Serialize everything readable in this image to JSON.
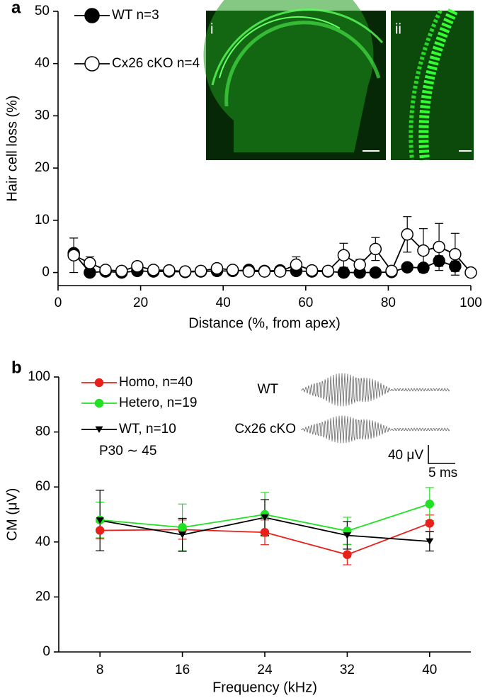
{
  "chart_data": [
    {
      "type": "line",
      "panel_label": "a",
      "x_label": "Distance (%, from apex)",
      "y_label": "Hair cell loss (%)",
      "image_labels": [
        "i",
        "ii"
      ],
      "xlim": [
        0,
        100
      ],
      "ylim": [
        -2.5,
        50
      ],
      "xticks": [
        0,
        20,
        40,
        60,
        80,
        100
      ],
      "yticks": [
        0,
        10,
        20,
        30,
        40,
        50
      ],
      "x": [
        3.8,
        7.7,
        11.5,
        15.4,
        19.2,
        23.1,
        26.9,
        30.8,
        34.6,
        38.5,
        42.3,
        46.2,
        50,
        53.8,
        57.7,
        61.5,
        65.4,
        69.2,
        73.1,
        76.9,
        80.8,
        84.6,
        88.5,
        92.3,
        96.2,
        100
      ],
      "series": [
        {
          "name": "WT n=3",
          "color": "#000000",
          "marker": "filled-circle",
          "values": [
            3.7,
            0,
            0.2,
            0,
            0.3,
            0.2,
            0.2,
            0.1,
            0.2,
            0.3,
            0.3,
            0.5,
            0.3,
            0.4,
            0.3,
            0.2,
            0.2,
            0,
            0,
            0,
            0.1,
            1.0,
            0.9,
            2.2,
            1.2,
            null
          ],
          "errors": [
            0.6,
            0.3,
            0.2,
            0.2,
            0.2,
            0.2,
            0.2,
            0.2,
            0.2,
            0.2,
            0.2,
            0.3,
            0.2,
            0.2,
            0.2,
            0.2,
            0.2,
            0.2,
            0.2,
            0.2,
            0.2,
            0.6,
            0.6,
            1.0,
            1.0,
            null
          ]
        },
        {
          "name": "Cx26 cKO n=4",
          "color": "#000000",
          "marker": "open-circle",
          "values": [
            3.3,
            1.8,
            0.5,
            0.3,
            1.2,
            0.5,
            0.4,
            0.2,
            0.3,
            0.8,
            0.5,
            0.2,
            0.2,
            0.2,
            1.5,
            0.4,
            0.3,
            3.3,
            1.5,
            4.5,
            0.3,
            7.3,
            4.2,
            4.9,
            3.5,
            0
          ],
          "errors": [
            3.3,
            1.2,
            0.3,
            0.3,
            0.4,
            0.3,
            0.3,
            0.2,
            0.3,
            0.4,
            0.3,
            0.2,
            0.2,
            0.2,
            1.5,
            0.3,
            0.3,
            2.3,
            1.0,
            2.2,
            0.3,
            3.4,
            4.2,
            4.5,
            4.0,
            0.2
          ]
        }
      ]
    },
    {
      "type": "line",
      "panel_label": "b",
      "x_label": "Frequency (kHz)",
      "y_label": "CM (μV)",
      "annotations": [
        "P30 ∼ 45",
        "WT",
        "Cx26 cKO",
        "40 μV",
        "5 ms"
      ],
      "xlim": [
        4,
        44
      ],
      "ylim": [
        0,
        100
      ],
      "xticks": [
        8,
        16,
        24,
        32,
        40
      ],
      "yticks": [
        0,
        20,
        40,
        60,
        80,
        100
      ],
      "x": [
        8,
        16,
        24,
        32,
        40
      ],
      "series": [
        {
          "name": "Homo, n=40",
          "color": "#e8201c",
          "marker": "circle",
          "values": [
            44.2,
            44.5,
            43.5,
            35.4,
            46.8
          ],
          "errors": [
            3.0,
            3.5,
            4.5,
            3.7,
            3.0
          ]
        },
        {
          "name": "Hetero, n=19",
          "color": "#22e024",
          "marker": "circle",
          "values": [
            48.0,
            45.3,
            50.0,
            44.0,
            53.8
          ],
          "errors": [
            6.5,
            8.5,
            8.0,
            5.0,
            6.0
          ]
        },
        {
          "name": "WT, n=10",
          "color": "#000000",
          "marker": "triangle-down",
          "values": [
            47.8,
            42.6,
            48.9,
            42.4,
            40.2
          ],
          "errors": [
            11.0,
            6.0,
            6.5,
            5.0,
            3.5
          ]
        }
      ]
    }
  ]
}
